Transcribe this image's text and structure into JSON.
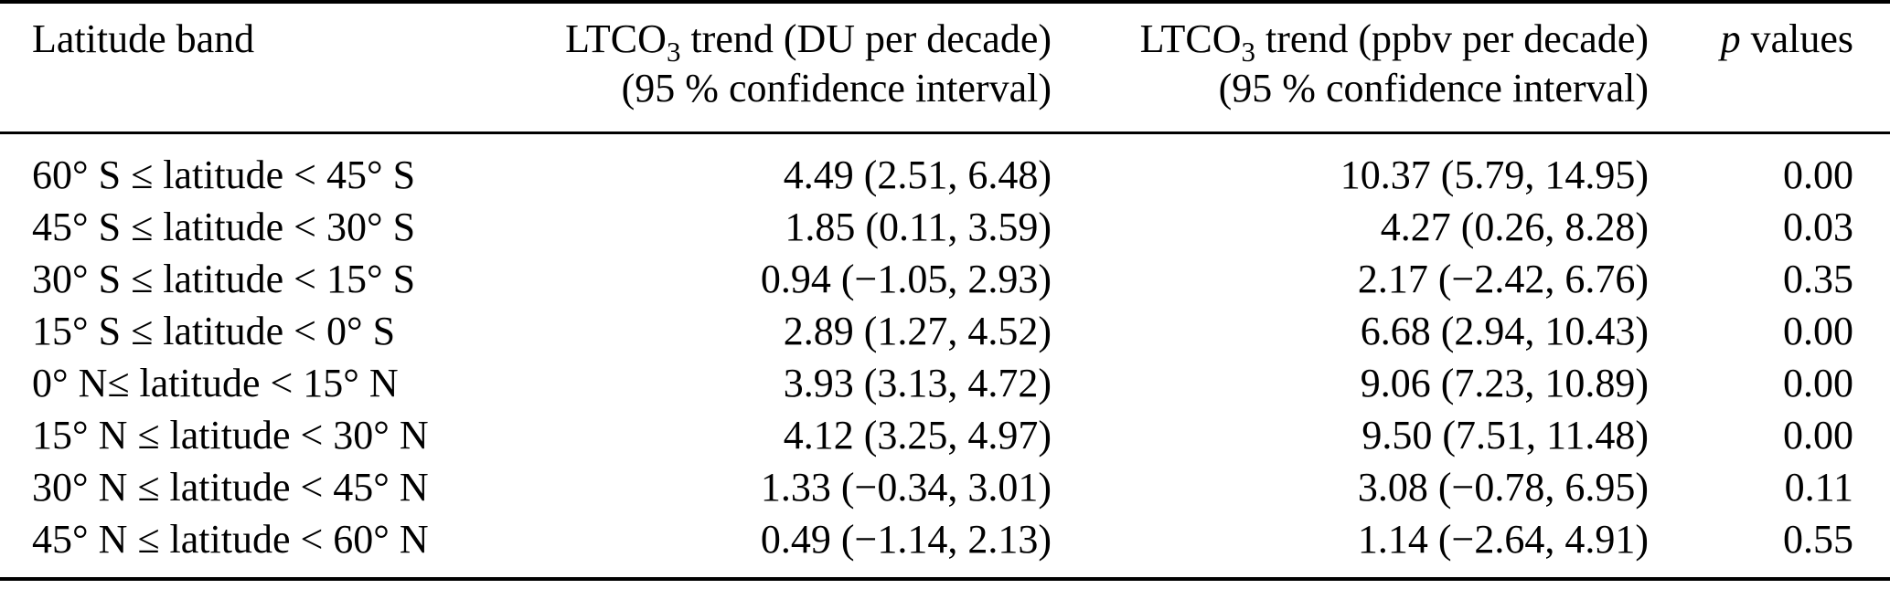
{
  "table": {
    "header": {
      "col1": "Latitude band",
      "col2": {
        "prefix": "LTCO",
        "sub": "3",
        "line1_rest": " trend (DU per decade)",
        "line2": "(95 % confidence interval)"
      },
      "col3": {
        "prefix": "LTCO",
        "sub": "3",
        "line1_rest": " trend (ppbv per decade)",
        "line2": "(95 % confidence interval)"
      },
      "col4": {
        "italic": "p",
        "rest": " values"
      }
    },
    "rows": [
      {
        "band": "60° S ≤ latitude < 45° S",
        "du": "4.49 (2.51, 6.48)",
        "ppbv": "10.37 (5.79, 14.95)",
        "p": "0.00"
      },
      {
        "band": "45° S ≤ latitude < 30° S",
        "du": "1.85 (0.11, 3.59)",
        "ppbv": "4.27 (0.26, 8.28)",
        "p": "0.03"
      },
      {
        "band": "30° S ≤ latitude < 15° S",
        "du": "0.94 (−1.05, 2.93)",
        "ppbv": "2.17 (−2.42, 6.76)",
        "p": "0.35"
      },
      {
        "band": "15° S ≤ latitude < 0° S",
        "du": "2.89 (1.27, 4.52)",
        "ppbv": "6.68 (2.94, 10.43)",
        "p": "0.00"
      },
      {
        "band": "0° N≤ latitude < 15° N",
        "du": "3.93 (3.13, 4.72)",
        "ppbv": "9.06 (7.23, 10.89)",
        "p": "0.00"
      },
      {
        "band": "15° N ≤ latitude < 30° N",
        "du": "4.12 (3.25, 4.97)",
        "ppbv": "9.50 (7.51, 11.48)",
        "p": "0.00"
      },
      {
        "band": "30° N ≤ latitude < 45° N",
        "du": "1.33 (−0.34, 3.01)",
        "ppbv": "3.08 (−0.78, 6.95)",
        "p": "0.11"
      },
      {
        "band": "45° N ≤ latitude < 60° N",
        "du": "0.49 (−1.14, 2.13)",
        "ppbv": "1.14 (−2.64, 4.91)",
        "p": "0.55"
      }
    ]
  }
}
